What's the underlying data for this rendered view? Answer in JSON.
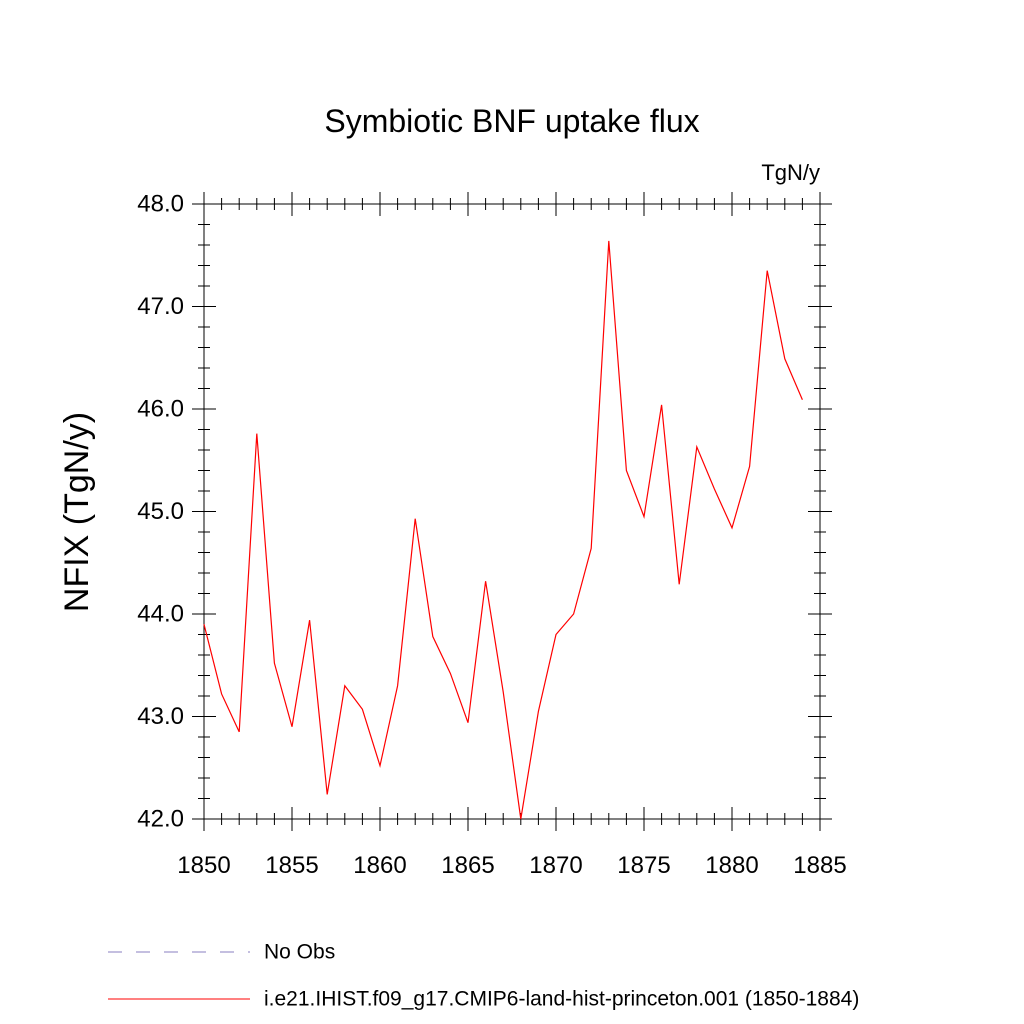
{
  "chart_data": {
    "type": "line",
    "title": "Symbiotic BNF uptake flux",
    "units": "TgN/y",
    "ylabel": "NFIX  (TgN/y)",
    "xlabel": "",
    "xlim": [
      1850,
      1885
    ],
    "ylim": [
      42.0,
      48.0
    ],
    "x_ticks": [
      1850,
      1855,
      1860,
      1865,
      1870,
      1875,
      1880,
      1885
    ],
    "y_ticks": [
      42.0,
      43.0,
      44.0,
      45.0,
      46.0,
      47.0,
      48.0
    ],
    "y_tick_labels": [
      "42.0",
      "43.0",
      "44.0",
      "45.0",
      "46.0",
      "47.0",
      "48.0"
    ],
    "grid": false,
    "legend_position": "bottom",
    "series": [
      {
        "name": "No Obs",
        "color": "#8a7fc0",
        "style": "dashed",
        "x": [],
        "values": []
      },
      {
        "name": "i.e21.IHIST.f09_g17.CMIP6-land-hist-princeton.001 (1850-1884)",
        "color": "#ff0000",
        "style": "solid",
        "x": [
          1850,
          1851,
          1852,
          1853,
          1854,
          1855,
          1856,
          1857,
          1858,
          1859,
          1860,
          1861,
          1862,
          1863,
          1864,
          1865,
          1866,
          1867,
          1868,
          1869,
          1870,
          1871,
          1872,
          1873,
          1874,
          1875,
          1876,
          1877,
          1878,
          1879,
          1880,
          1881,
          1882,
          1883,
          1884
        ],
        "values": [
          43.9,
          43.22,
          42.85,
          45.76,
          43.52,
          42.9,
          43.94,
          42.24,
          43.3,
          43.07,
          42.52,
          43.3,
          44.93,
          43.78,
          43.42,
          42.94,
          44.32,
          43.24,
          42.0,
          43.05,
          43.8,
          44.0,
          44.64,
          47.64,
          45.4,
          44.95,
          46.04,
          44.29,
          45.63,
          45.22,
          44.84,
          45.44,
          47.35,
          46.49,
          46.09
        ]
      }
    ]
  }
}
